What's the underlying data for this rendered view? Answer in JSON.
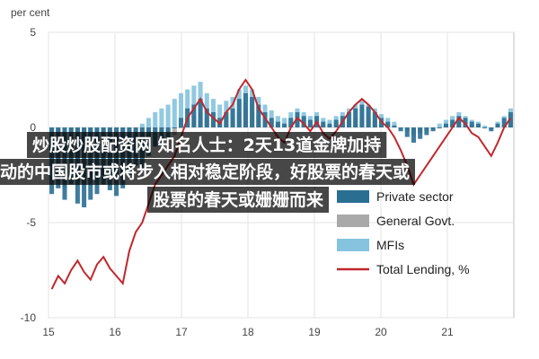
{
  "chart_data": {
    "type": "bar",
    "ylabel": "per cent",
    "ylim": [
      -10,
      5
    ],
    "y_ticks": [
      5,
      0,
      -5,
      -10
    ],
    "x_ticks": [
      "15",
      "16",
      "17",
      "18",
      "19",
      "20",
      "21"
    ],
    "grid": true,
    "legend_position": "bottom-right",
    "series": [
      {
        "name": "Private sector",
        "kind": "bar",
        "color": "#2a6f92",
        "values": [
          -3.5,
          -3.2,
          -3.8,
          -3.0,
          -4.0,
          -4.2,
          -3.8,
          -3.5,
          -3.0,
          -3.3,
          -3.6,
          -3.2,
          -2.5,
          -2.0,
          -2.2,
          -1.5,
          -1.0,
          -0.8,
          -0.5,
          0.0,
          0.5,
          1.0,
          1.2,
          1.5,
          1.0,
          0.8,
          0.5,
          0.8,
          1.0,
          1.5,
          1.8,
          1.6,
          1.2,
          0.8,
          0.5,
          0.3,
          0.2,
          0.5,
          0.8,
          0.6,
          0.4,
          0.6,
          0.3,
          0.2,
          0.4,
          0.6,
          0.8,
          1.0,
          1.2,
          1.1,
          0.8,
          0.5,
          0.3,
          0.1,
          -0.2,
          -0.5,
          -0.8,
          -0.6,
          -0.4,
          -0.2,
          0.0,
          0.2,
          0.4,
          0.6,
          0.5,
          0.3,
          0.2,
          0.0,
          -0.2,
          0.2,
          0.5,
          0.8
        ]
      },
      {
        "name": "General Govt.",
        "kind": "bar",
        "color": "#a9a9a9",
        "values": [
          -3.0,
          -2.8,
          -3.2,
          -2.5,
          -2.8,
          -3.0,
          -2.6,
          -2.4,
          -2.2,
          -2.6,
          -2.8,
          -2.4,
          -2.0,
          -1.8,
          -1.6,
          -1.2,
          -1.0,
          -0.8,
          -0.6,
          -0.4,
          0.0,
          0.4,
          0.6,
          0.8,
          0.5,
          0.4,
          0.3,
          0.5,
          0.6,
          0.8,
          1.0,
          0.8,
          0.6,
          0.4,
          0.3,
          0.2,
          0.1,
          0.3,
          0.5,
          0.4,
          0.2,
          0.3,
          0.2,
          0.1,
          0.2,
          0.3,
          0.4,
          0.5,
          0.6,
          0.5,
          0.4,
          0.3,
          0.2,
          0.1,
          0.0,
          -0.2,
          -0.4,
          -0.3,
          -0.2,
          -0.1,
          0.0,
          0.1,
          0.2,
          0.3,
          0.2,
          0.1,
          0.1,
          0.0,
          -0.1,
          0.1,
          0.2,
          0.4
        ]
      },
      {
        "name": "MFIs",
        "kind": "bar",
        "color": "#85c3de",
        "values": [
          -0.5,
          -0.4,
          -0.6,
          -0.3,
          -0.5,
          -0.6,
          -0.4,
          -0.3,
          -0.2,
          -0.4,
          -0.5,
          -0.3,
          -0.2,
          0.0,
          0.2,
          0.5,
          0.8,
          1.0,
          1.2,
          1.5,
          1.8,
          2.0,
          2.2,
          2.4,
          1.8,
          1.5,
          1.2,
          1.4,
          1.6,
          2.0,
          2.2,
          2.0,
          1.6,
          1.2,
          0.9,
          0.6,
          0.5,
          0.8,
          1.0,
          0.8,
          0.6,
          0.8,
          0.5,
          0.4,
          0.6,
          0.8,
          1.0,
          1.2,
          1.4,
          1.2,
          1.0,
          0.7,
          0.5,
          0.3,
          0.0,
          -0.2,
          -0.4,
          -0.3,
          -0.1,
          0.0,
          0.2,
          0.4,
          0.6,
          0.8,
          0.6,
          0.4,
          0.3,
          0.1,
          0.0,
          0.3,
          0.6,
          1.0
        ]
      },
      {
        "name": "Total Lending, %",
        "kind": "line",
        "color": "#c0282d",
        "values": [
          -8.5,
          -7.8,
          -8.2,
          -7.5,
          -7.0,
          -7.6,
          -8.0,
          -7.2,
          -6.8,
          -7.4,
          -7.8,
          -8.2,
          -6.5,
          -5.5,
          -5.0,
          -4.0,
          -3.0,
          -2.5,
          -2.0,
          -1.5,
          -0.5,
          0.5,
          1.0,
          1.5,
          0.8,
          0.5,
          0.2,
          0.8,
          1.2,
          2.0,
          2.5,
          2.0,
          1.0,
          0.5,
          0.0,
          -0.5,
          -0.8,
          0.0,
          0.5,
          0.2,
          -0.2,
          0.3,
          -0.3,
          -0.6,
          -0.2,
          0.3,
          0.8,
          1.2,
          1.5,
          1.2,
          0.8,
          0.3,
          0.0,
          -0.5,
          -1.2,
          -2.0,
          -3.0,
          -2.5,
          -2.0,
          -1.5,
          -1.0,
          -0.5,
          0.0,
          0.5,
          0.2,
          -0.3,
          -0.5,
          -1.0,
          -1.5,
          -0.8,
          0.0,
          0.5
        ]
      }
    ]
  },
  "overlay": {
    "line1": "炒股炒股配资网 知名人士：2天13道金牌加持",
    "line2": "动的中国股市或将步入相对稳定阶段，好股票的春天或",
    "line3": "股票的春天或姗姗而来"
  },
  "colors": {
    "banner": "#000000",
    "grid": "#e3e3e3",
    "axis": "#bfbfbf"
  }
}
